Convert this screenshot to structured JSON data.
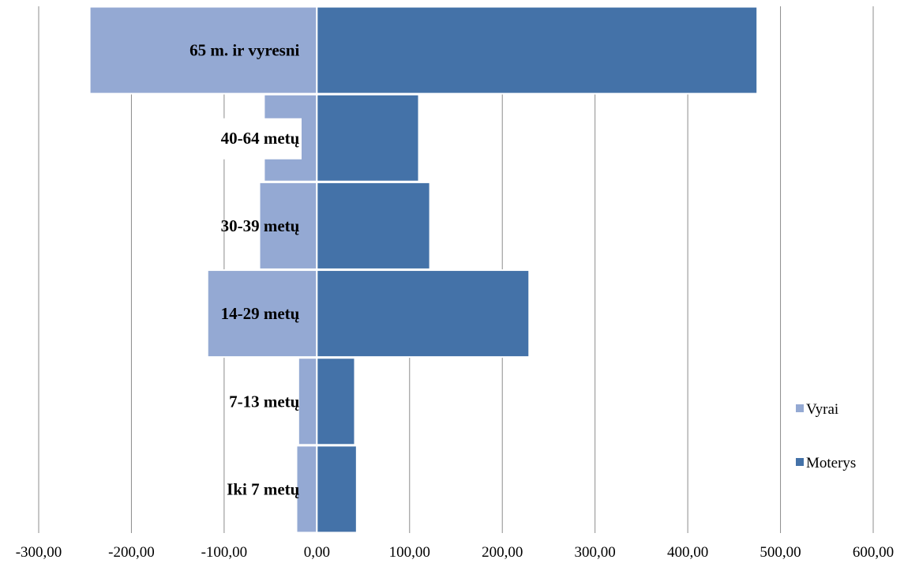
{
  "chart_data": {
    "type": "bar",
    "orientation": "horizontal",
    "stacked": "diverging",
    "categories": [
      "Iki 7 metų",
      "7-13 metų",
      "14-29 metų",
      "30-39 metų",
      "40-64 metų",
      "65 m. ir vyresni"
    ],
    "series": [
      {
        "name": "Vyrai",
        "values": [
          -22,
          -20,
          -118,
          -62,
          -57,
          -245
        ],
        "color": "#94a9d3"
      },
      {
        "name": "Moterys",
        "values": [
          43,
          41,
          229,
          122,
          110,
          475
        ],
        "color": "#4472a8"
      }
    ],
    "xlim": [
      -300,
      600
    ],
    "xticks": [
      -300,
      -200,
      -100,
      0,
      100,
      200,
      300,
      400,
      500,
      600
    ],
    "xtick_labels": [
      "-300,00",
      "-200,00",
      "-100,00",
      "0,00",
      "100,00",
      "200,00",
      "300,00",
      "400,00",
      "500,00",
      "600,00"
    ],
    "grid": "vertical",
    "legend_position": "right",
    "title": "",
    "xlabel": "",
    "ylabel": ""
  }
}
